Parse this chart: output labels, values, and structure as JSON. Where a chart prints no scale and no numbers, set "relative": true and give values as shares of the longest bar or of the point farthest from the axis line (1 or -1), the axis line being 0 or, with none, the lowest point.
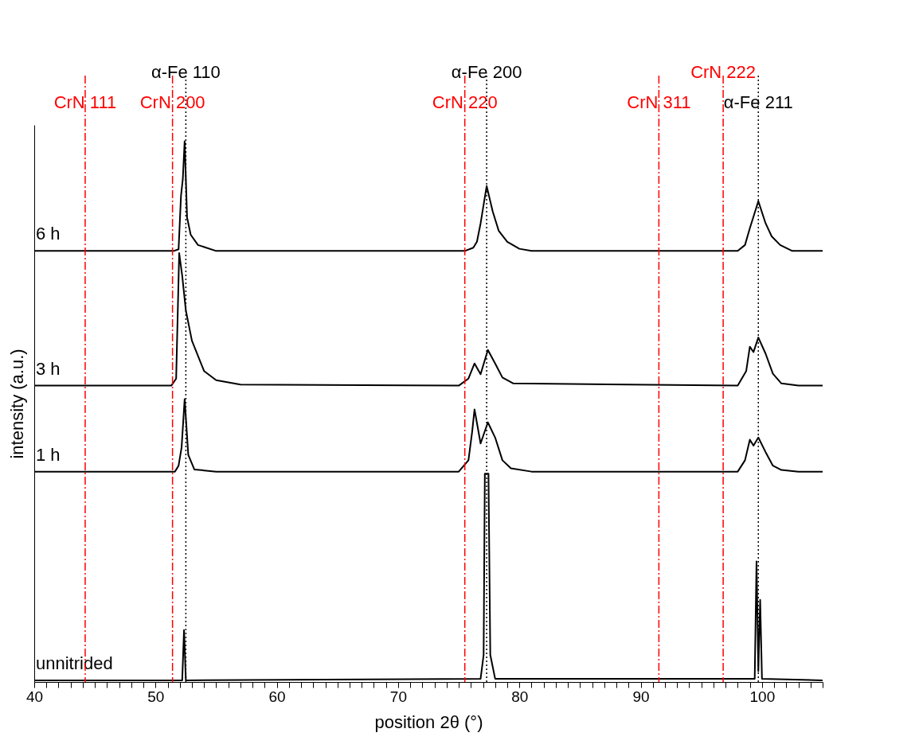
{
  "chart_data": {
    "type": "line",
    "relative": true,
    "xlabel": "position 2θ (°)",
    "ylabel": "intensity (a.u.)",
    "xlim": [
      40,
      105
    ],
    "xticks": [
      40,
      {
        "value": 41,
        "label": null
      },
      {
        "value": 42,
        "label": null
      },
      {
        "value": 43,
        "label": null
      },
      {
        "value": 44,
        "label": null
      },
      {
        "value": 45,
        "label": null
      },
      {
        "value": 46,
        "label": null
      },
      {
        "value": 47,
        "label": null
      },
      {
        "value": 48,
        "label": null
      },
      {
        "value": 49,
        "label": null
      },
      50,
      {
        "value": 51,
        "label": null
      },
      {
        "value": 52,
        "label": null
      },
      {
        "value": 53,
        "label": null
      },
      {
        "value": 54,
        "label": null
      },
      {
        "value": 55,
        "label": null
      },
      {
        "value": 56,
        "label": null
      },
      {
        "value": 57,
        "label": null
      },
      {
        "value": 58,
        "label": null
      },
      {
        "value": 59,
        "label": null
      },
      60,
      {
        "value": 61,
        "label": null
      },
      {
        "value": 62,
        "label": null
      },
      {
        "value": 63,
        "label": null
      },
      {
        "value": 64,
        "label": null
      },
      {
        "value": 65,
        "label": null
      },
      {
        "value": 66,
        "label": null
      },
      {
        "value": 67,
        "label": null
      },
      {
        "value": 68,
        "label": null
      },
      {
        "value": 69,
        "label": null
      },
      70,
      {
        "value": 71,
        "label": null
      },
      {
        "value": 72,
        "label": null
      },
      {
        "value": 73,
        "label": null
      },
      {
        "value": 74,
        "label": null
      },
      {
        "value": 75,
        "label": null
      },
      {
        "value": 76,
        "label": null
      },
      {
        "value": 77,
        "label": null
      },
      {
        "value": 78,
        "label": null
      },
      {
        "value": 79,
        "label": null
      },
      80,
      {
        "value": 81,
        "label": null
      },
      {
        "value": 82,
        "label": null
      },
      {
        "value": 83,
        "label": null
      },
      {
        "value": 84,
        "label": null
      },
      {
        "value": 85,
        "label": null
      },
      {
        "value": 86,
        "label": null
      },
      {
        "value": 87,
        "label": null
      },
      {
        "value": 88,
        "label": null
      },
      {
        "value": 89,
        "label": null
      },
      90,
      {
        "value": 91,
        "label": null
      },
      {
        "value": 92,
        "label": null
      },
      {
        "value": 93,
        "label": null
      },
      {
        "value": 94,
        "label": null
      },
      {
        "value": 95,
        "label": null
      },
      {
        "value": 96,
        "label": null
      },
      {
        "value": 97,
        "label": null
      },
      {
        "value": 98,
        "label": null
      },
      {
        "value": 99,
        "label": null
      },
      100,
      {
        "value": 101,
        "label": null
      },
      {
        "value": 102,
        "label": null
      },
      {
        "value": 103,
        "label": null
      },
      {
        "value": 104,
        "label": null
      },
      {
        "value": 105,
        "label": null
      }
    ],
    "tick_labels": "x",
    "grid": false,
    "marker": "none",
    "line_style": "solid",
    "series": [
      {
        "name": "6 h",
        "color": "#000000",
        "x": [
          40,
          51.5,
          51.9,
          52.1,
          52.25,
          52.4,
          52.6,
          52.9,
          53.5,
          55,
          75.5,
          76.2,
          76.5,
          76.8,
          77.3,
          77.8,
          78.3,
          79,
          80,
          81,
          98,
          98.6,
          99,
          99.7,
          100.3,
          100.8,
          101.5,
          102.5,
          105
        ],
        "values": [
          0.797,
          0.797,
          0.8,
          0.899,
          0.93,
          1.0,
          0.859,
          0.827,
          0.808,
          0.797,
          0.797,
          0.803,
          0.814,
          0.848,
          0.917,
          0.87,
          0.834,
          0.814,
          0.801,
          0.797,
          0.797,
          0.808,
          0.839,
          0.889,
          0.848,
          0.824,
          0.808,
          0.797,
          0.797
        ]
      },
      {
        "name": "3 h",
        "color": "#000000",
        "x": [
          40,
          51.3,
          51.7,
          51.95,
          52.2,
          52.5,
          53,
          54,
          55,
          57,
          75,
          75.8,
          76.3,
          76.8,
          77.4,
          78,
          78.6,
          79.5,
          98,
          98.7,
          99,
          99.3,
          99.7,
          100.3,
          100.9,
          101.6,
          103,
          105
        ],
        "values": [
          0.548,
          0.548,
          0.561,
          0.793,
          0.751,
          0.687,
          0.631,
          0.575,
          0.558,
          0.55,
          0.548,
          0.561,
          0.589,
          0.569,
          0.614,
          0.589,
          0.563,
          0.552,
          0.548,
          0.575,
          0.62,
          0.61,
          0.637,
          0.607,
          0.57,
          0.552,
          0.548,
          0.548
        ]
      },
      {
        "name": "1 h",
        "color": "#000000",
        "x": [
          40,
          51.6,
          51.9,
          52.15,
          52.4,
          52.7,
          53.2,
          55,
          75,
          75.8,
          76.1,
          76.3,
          76.8,
          77.4,
          78,
          78.6,
          79.3,
          81,
          98,
          98.6,
          99,
          99.3,
          99.7,
          100.3,
          100.9,
          101.6,
          103,
          105
        ],
        "values": [
          0.389,
          0.389,
          0.4,
          0.434,
          0.523,
          0.42,
          0.393,
          0.389,
          0.389,
          0.41,
          0.462,
          0.504,
          0.441,
          0.48,
          0.452,
          0.41,
          0.395,
          0.389,
          0.389,
          0.41,
          0.448,
          0.437,
          0.452,
          0.425,
          0.4,
          0.392,
          0.389,
          0.389
        ]
      },
      {
        "name": "unnitrided",
        "color": "#000000",
        "x": [
          40,
          52.2,
          52.35,
          52.5,
          76.8,
          77.05,
          77.15,
          77.45,
          77.6,
          78,
          99.4,
          99.55,
          99.7,
          99.85,
          100,
          105
        ],
        "values": [
          0.003,
          0.003,
          0.096,
          0.003,
          0.006,
          0.05,
          0.385,
          0.385,
          0.05,
          0.006,
          0.006,
          0.223,
          0.02,
          0.152,
          0.006,
          0.003
        ]
      }
    ],
    "ref_lines": [
      {
        "axis": "x",
        "value": 44.2,
        "label": "CrN 111",
        "color": "#ff0000",
        "line_style": "dashed"
      },
      {
        "axis": "x",
        "value": 51.4,
        "label": "CrN 200",
        "color": "#ff0000",
        "line_style": "dashed"
      },
      {
        "axis": "x",
        "value": 52.5,
        "label": "α-Fe 110",
        "color": "#000000",
        "line_style": "dotted"
      },
      {
        "axis": "x",
        "value": 75.5,
        "label": "CrN 220",
        "color": "#ff0000",
        "line_style": "dashed"
      },
      {
        "axis": "x",
        "value": 77.3,
        "label": "α-Fe 200",
        "color": "#000000",
        "line_style": "dotted"
      },
      {
        "axis": "x",
        "value": 91.5,
        "label": "CrN 311",
        "color": "#ff0000",
        "line_style": "dashed"
      },
      {
        "axis": "x",
        "value": 96.8,
        "label": "CrN 222",
        "color": "#ff0000",
        "line_style": "dashed"
      },
      {
        "axis": "x",
        "value": 99.7,
        "label": "α-Fe 211",
        "color": "#000000",
        "line_style": "dotted"
      }
    ]
  }
}
